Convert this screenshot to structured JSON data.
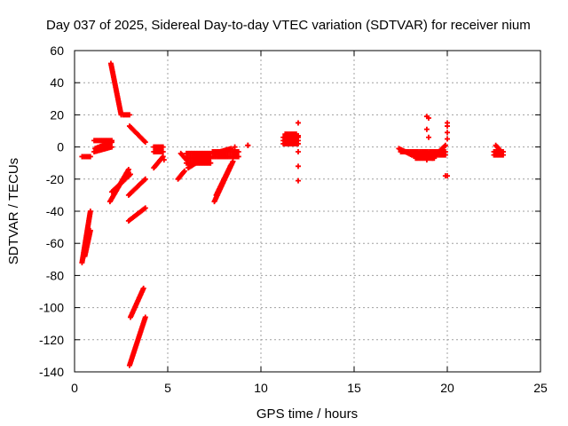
{
  "chart_data": {
    "type": "scatter",
    "title": "Day 037 of 2025, Sidereal Day-to-day VTEC variation (SDTVAR) for receiver nium",
    "xlabel": "GPS time / hours",
    "ylabel": "SDTVAR / TECUs",
    "xlim": [
      0,
      25
    ],
    "ylim": [
      -140,
      60
    ],
    "xticks": [
      0,
      5,
      10,
      15,
      20,
      25
    ],
    "yticks": [
      -140,
      -120,
      -100,
      -80,
      -60,
      -40,
      -20,
      0,
      20,
      40,
      60
    ],
    "grid": true,
    "marker": "plus",
    "color": "#ff0000",
    "segments": [
      {
        "x": [
          0.4,
          0.85
        ],
        "y": [
          -6,
          -6
        ]
      },
      {
        "x": [
          0.4,
          0.85
        ],
        "y": [
          -72,
          -40
        ]
      },
      {
        "x": [
          0.55,
          0.85
        ],
        "y": [
          -68,
          -52
        ]
      },
      {
        "x": [
          1.05,
          2.0
        ],
        "y": [
          4,
          4
        ]
      },
      {
        "x": [
          1.05,
          2.0
        ],
        "y": [
          -3,
          0
        ]
      },
      {
        "x": [
          1.1,
          2.0
        ],
        "y": [
          -1,
          3
        ]
      },
      {
        "x": [
          1.95,
          2.5
        ],
        "y": [
          52,
          20
        ]
      },
      {
        "x": [
          2.6,
          2.95
        ],
        "y": [
          20,
          20
        ]
      },
      {
        "x": [
          1.9,
          2.9
        ],
        "y": [
          -34,
          -14
        ]
      },
      {
        "x": [
          2.0,
          3.0
        ],
        "y": [
          -28,
          -17
        ]
      },
      {
        "x": [
          2.95,
          3.8
        ],
        "y": [
          13,
          3
        ]
      },
      {
        "x": [
          2.9,
          3.8
        ],
        "y": [
          -30,
          -20
        ]
      },
      {
        "x": [
          2.9,
          3.8
        ],
        "y": [
          -46,
          -38
        ]
      },
      {
        "x": [
          3.0,
          3.7
        ],
        "y": [
          -106,
          -88
        ]
      },
      {
        "x": [
          2.95,
          3.8
        ],
        "y": [
          -136,
          -106
        ]
      },
      {
        "x": [
          4.25,
          4.75
        ],
        "y": [
          0,
          0
        ]
      },
      {
        "x": [
          4.25,
          4.75
        ],
        "y": [
          -3,
          -3
        ]
      },
      {
        "x": [
          4.25,
          4.75
        ],
        "y": [
          -13,
          -6
        ]
      },
      {
        "x": [
          5.55,
          5.9
        ],
        "y": [
          -20,
          -15
        ]
      },
      {
        "x": [
          5.7,
          6.0
        ],
        "y": [
          -4,
          -8
        ]
      },
      {
        "x": [
          6.0,
          7.3
        ],
        "y": [
          -7,
          -7
        ]
      },
      {
        "x": [
          6.0,
          7.3
        ],
        "y": [
          -4,
          -4
        ]
      },
      {
        "x": [
          6.0,
          7.3
        ],
        "y": [
          -10,
          -10
        ]
      },
      {
        "x": [
          6.1,
          7.2
        ],
        "y": [
          -13,
          -5
        ]
      },
      {
        "x": [
          7.4,
          8.8
        ],
        "y": [
          -3,
          -3
        ]
      },
      {
        "x": [
          7.4,
          8.8
        ],
        "y": [
          -6,
          -6
        ]
      },
      {
        "x": [
          7.5,
          8.4
        ],
        "y": [
          -4,
          -1
        ]
      },
      {
        "x": [
          7.5,
          8.5
        ],
        "y": [
          -34,
          -9
        ]
      },
      {
        "x": [
          7.6,
          8.4
        ],
        "y": [
          -30,
          -11
        ]
      },
      {
        "x": [
          9.3,
          9.3
        ],
        "y": [
          1,
          1
        ]
      },
      {
        "x": [
          11.2,
          12.0
        ],
        "y": [
          2,
          2
        ]
      },
      {
        "x": [
          11.2,
          12.0
        ],
        "y": [
          4,
          4
        ]
      },
      {
        "x": [
          11.2,
          12.0
        ],
        "y": [
          6,
          6
        ]
      },
      {
        "x": [
          11.3,
          11.9
        ],
        "y": [
          8,
          8
        ]
      },
      {
        "x": [
          11.4,
          12.0
        ],
        "y": [
          3,
          7
        ]
      },
      {
        "x": [
          17.4,
          18.1
        ],
        "y": [
          -1,
          -5
        ]
      },
      {
        "x": [
          17.5,
          18.1
        ],
        "y": [
          -3,
          -3
        ]
      },
      {
        "x": [
          18.1,
          19.9
        ],
        "y": [
          -3,
          -3
        ]
      },
      {
        "x": [
          18.1,
          19.9
        ],
        "y": [
          -5,
          -5
        ]
      },
      {
        "x": [
          18.3,
          19.3
        ],
        "y": [
          -7,
          -7
        ]
      },
      {
        "x": [
          19.2,
          19.9
        ],
        "y": [
          -7,
          1
        ]
      },
      {
        "x": [
          22.5,
          23.0
        ],
        "y": [
          -3,
          -3
        ]
      },
      {
        "x": [
          22.5,
          23.0
        ],
        "y": [
          -5,
          -5
        ]
      },
      {
        "x": [
          22.6,
          22.9
        ],
        "y": [
          1,
          -3
        ]
      }
    ],
    "points": [
      [
        12.0,
        15
      ],
      [
        12.0,
        -3
      ],
      [
        12.0,
        -12
      ],
      [
        12.0,
        -21
      ],
      [
        8.6,
        0
      ],
      [
        8.6,
        -6
      ],
      [
        18.9,
        19
      ],
      [
        19.0,
        18
      ],
      [
        18.9,
        11
      ],
      [
        19.0,
        6
      ],
      [
        20.0,
        15
      ],
      [
        20.0,
        13
      ],
      [
        20.0,
        9
      ],
      [
        20.0,
        5
      ],
      [
        20.0,
        -18
      ],
      [
        19.9,
        -18
      ],
      [
        18.9,
        -8
      ],
      [
        4.8,
        -8
      ]
    ]
  }
}
